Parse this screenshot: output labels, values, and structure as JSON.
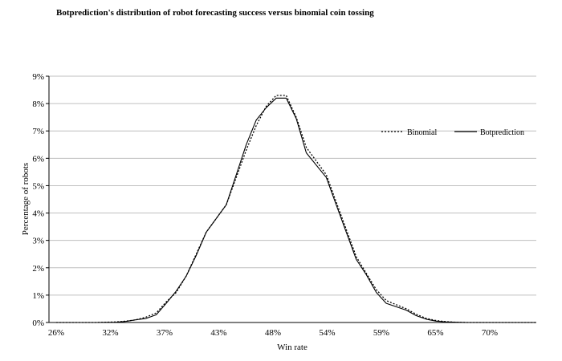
{
  "chart_data": {
    "type": "line",
    "title": "Botprediction's distribution of robot forecasting success versus binomial coin tossing",
    "xlabel": "Win rate",
    "ylabel": "Percentage of robots",
    "x_ticks": [
      "26%",
      "32%",
      "37%",
      "43%",
      "48%",
      "54%",
      "59%",
      "65%",
      "70%"
    ],
    "y_ticks": [
      "0%",
      "1%",
      "2%",
      "3%",
      "4%",
      "5%",
      "6%",
      "7%",
      "8%",
      "9%"
    ],
    "ylim": [
      0,
      9
    ],
    "x": [
      26,
      28,
      30,
      32,
      33,
      34,
      35,
      36,
      37,
      38,
      39,
      40,
      41,
      43,
      44,
      45,
      46,
      47,
      48,
      49,
      50,
      51,
      53,
      54,
      55,
      56,
      57,
      58,
      59,
      61,
      62,
      63,
      64,
      65,
      66,
      67,
      68,
      70,
      71,
      72,
      73,
      74
    ],
    "series": [
      {
        "name": "Binomial",
        "style": "dotted",
        "values": [
          0,
          0,
          0,
          0.02,
          0.05,
          0.1,
          0.2,
          0.35,
          0.75,
          1.1,
          1.7,
          2.5,
          3.3,
          4.3,
          5.3,
          6.3,
          7.2,
          7.9,
          8.3,
          8.3,
          7.5,
          6.4,
          5.4,
          4.4,
          3.4,
          2.4,
          1.8,
          1.2,
          0.8,
          0.5,
          0.3,
          0.15,
          0.07,
          0.03,
          0.01,
          0,
          0,
          0,
          0,
          0,
          0,
          0
        ]
      },
      {
        "name": "Botprediction",
        "style": "solid",
        "values": [
          0,
          0,
          0,
          0.01,
          0.04,
          0.1,
          0.15,
          0.28,
          0.7,
          1.15,
          1.7,
          2.45,
          3.3,
          4.3,
          5.4,
          6.5,
          7.4,
          7.85,
          8.2,
          8.2,
          7.45,
          6.2,
          5.3,
          4.3,
          3.3,
          2.3,
          1.75,
          1.1,
          0.7,
          0.45,
          0.25,
          0.12,
          0.05,
          0.02,
          0.01,
          0,
          0,
          0,
          0,
          0,
          0,
          0
        ]
      }
    ],
    "legend_position": "upper-right",
    "grid": "horizontal"
  }
}
